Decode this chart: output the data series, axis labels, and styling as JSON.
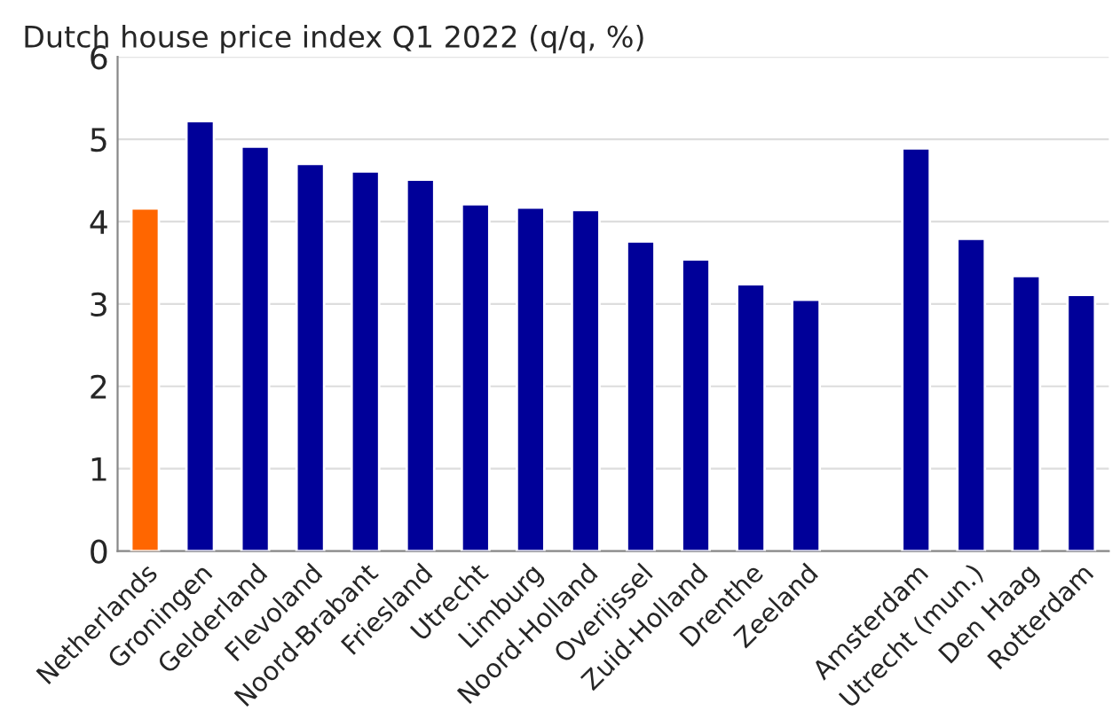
{
  "chart_data": {
    "type": "bar",
    "title": "Dutch house price index Q1 2022 (q/q, %)",
    "categories": [
      "Netherlands",
      "Groningen",
      "Gelderland",
      "Flevoland",
      "Noord-Brabant",
      "Friesland",
      "Utrecht",
      "Limburg",
      "Noord-Holland",
      "Overijssel",
      "Zuid-Holland",
      "Drenthe",
      "Zeeland",
      null,
      "Amsterdam",
      "Utrecht (mun.)",
      "Den Haag",
      "Rotterdam"
    ],
    "values": [
      4.16,
      5.22,
      4.91,
      4.7,
      4.61,
      4.51,
      4.21,
      4.17,
      4.14,
      3.76,
      3.54,
      3.24,
      3.05,
      null,
      4.89,
      3.79,
      3.34,
      3.11
    ],
    "colors": [
      "#ff6600",
      "#000099",
      "#000099",
      "#000099",
      "#000099",
      "#000099",
      "#000099",
      "#000099",
      "#000099",
      "#000099",
      "#000099",
      "#000099",
      "#000099",
      null,
      "#000099",
      "#000099",
      "#000099",
      "#000099"
    ],
    "ylim": [
      0,
      6
    ],
    "yticks": [
      0,
      1,
      2,
      3,
      4,
      5,
      6
    ],
    "grid": "y",
    "legend": false
  }
}
